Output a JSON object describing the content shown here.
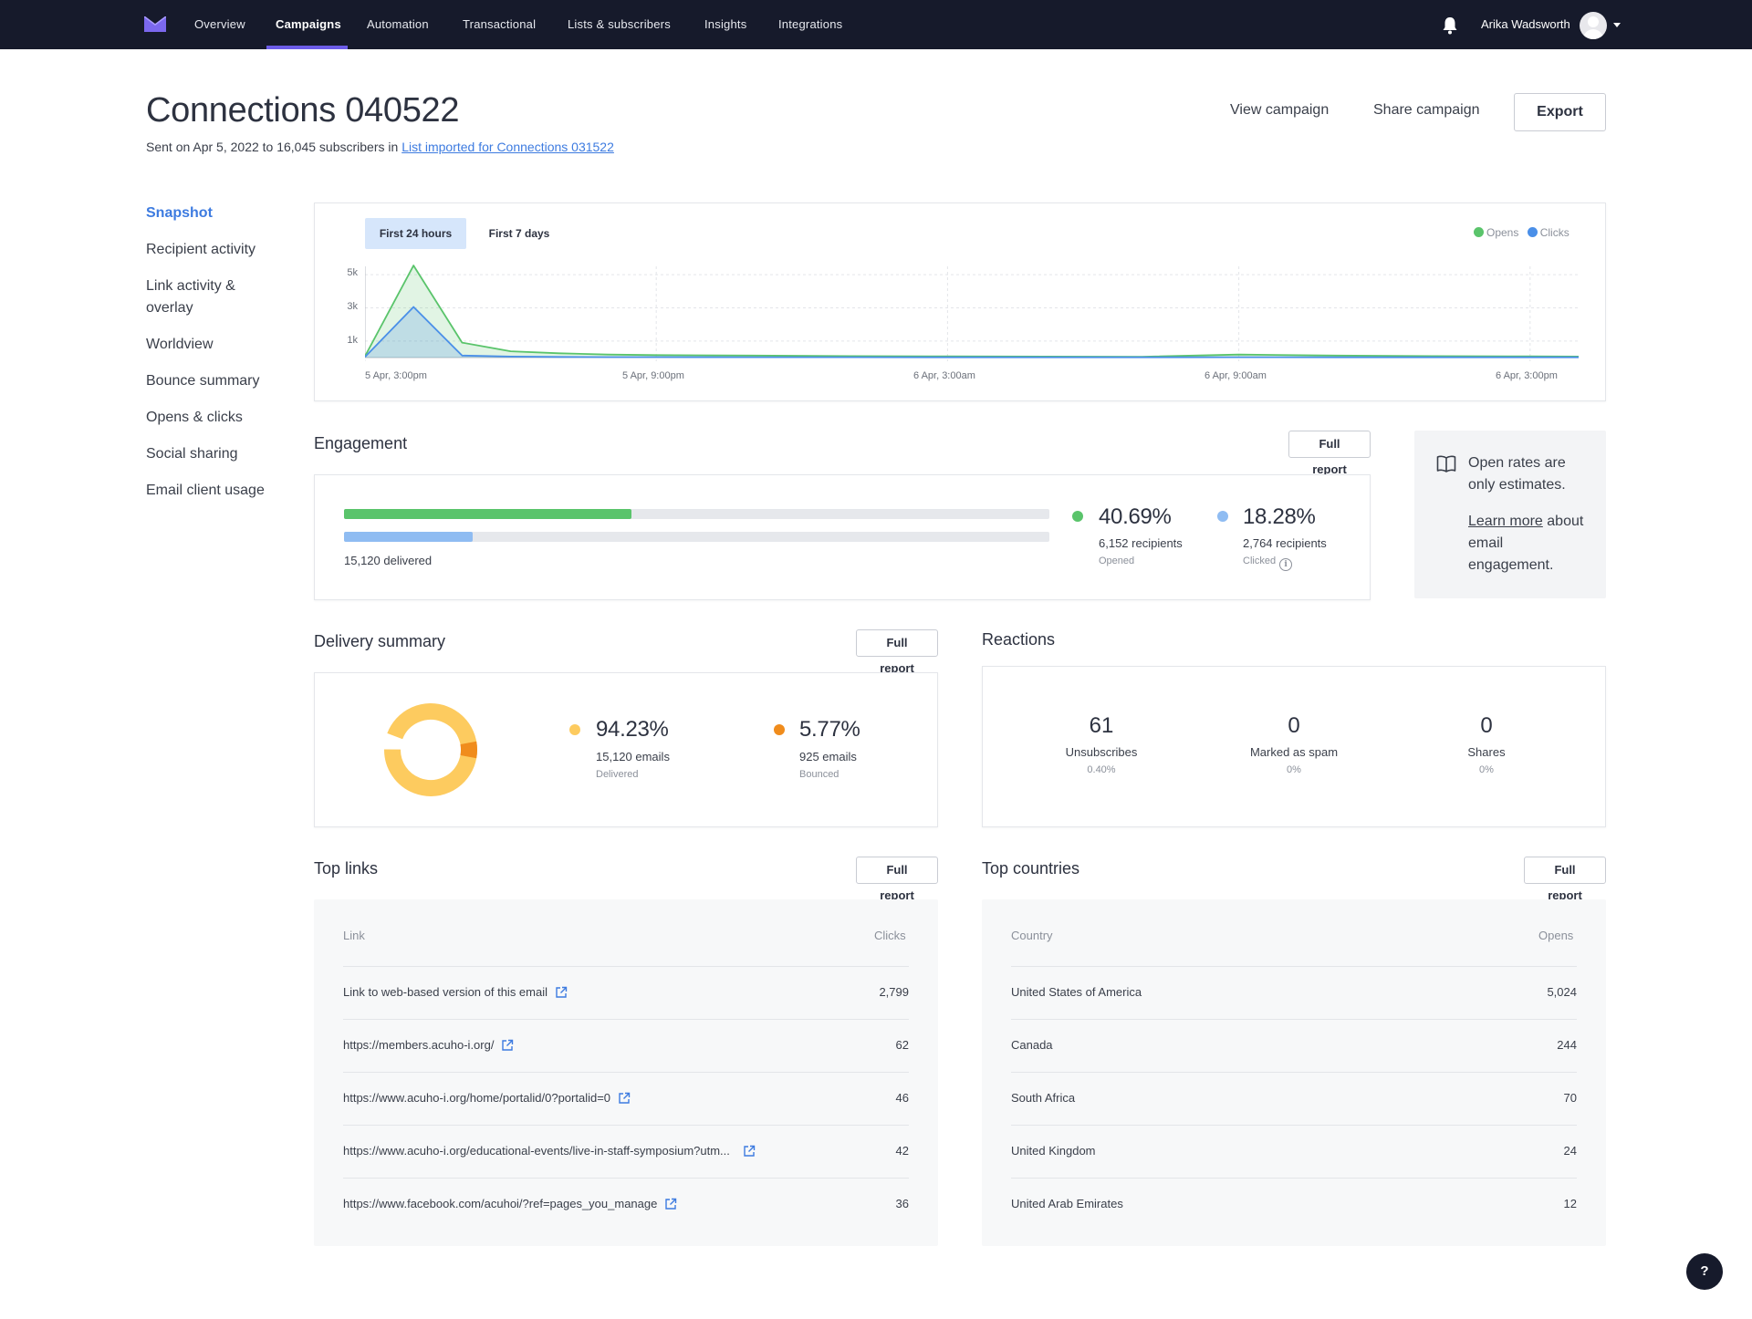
{
  "nav": {
    "items": [
      {
        "label": "Overview"
      },
      {
        "label": "Campaigns"
      },
      {
        "label": "Automation"
      },
      {
        "label": "Transactional"
      },
      {
        "label": "Lists & subscribers"
      },
      {
        "label": "Insights"
      },
      {
        "label": "Integrations"
      }
    ],
    "active_index": 1,
    "user_name": "Arika Wadsworth"
  },
  "header": {
    "title": "Connections 040522",
    "subtitle_prefix": "Sent on Apr 5, 2022 to 16,045 subscribers in ",
    "list_link": "List imported for Connections 031522",
    "view_campaign": "View campaign",
    "share_campaign": "Share campaign",
    "export": "Export"
  },
  "sidebar": {
    "items": [
      {
        "label": "Snapshot",
        "active": true
      },
      {
        "label": "Recipient activity"
      },
      {
        "label": "Link activity & overlay"
      },
      {
        "label": "Worldview"
      },
      {
        "label": "Bounce summary"
      },
      {
        "label": "Opens & clicks"
      },
      {
        "label": "Social sharing"
      },
      {
        "label": "Email client usage"
      }
    ]
  },
  "chart": {
    "tabs": [
      {
        "label": "First 24 hours",
        "active": true
      },
      {
        "label": "First 7 days"
      }
    ],
    "legend": [
      {
        "label": "Opens",
        "color": "#5ac46b"
      },
      {
        "label": "Clicks",
        "color": "#4a8fe8"
      }
    ]
  },
  "chart_data": {
    "type": "area",
    "x_tick_labels": [
      "5 Apr, 3:00pm",
      "5 Apr, 9:00pm",
      "6 Apr, 3:00am",
      "6 Apr, 9:00am",
      "6 Apr, 3:00pm"
    ],
    "y_tick_labels": [
      "5k",
      "3k",
      "1k"
    ],
    "ylim": [
      0,
      5500
    ],
    "x_hours": [
      0,
      1,
      2,
      3,
      4,
      5,
      6,
      8,
      10,
      12,
      14,
      16,
      18,
      20,
      22,
      24,
      25
    ],
    "series": [
      {
        "name": "Opens",
        "color": "#5ac46b",
        "values": [
          80,
          5550,
          900,
          380,
          260,
          180,
          150,
          120,
          90,
          70,
          60,
          50,
          180,
          120,
          90,
          70,
          60
        ]
      },
      {
        "name": "Clicks",
        "color": "#4a8fe8",
        "values": [
          40,
          3050,
          120,
          60,
          40,
          30,
          25,
          20,
          20,
          15,
          15,
          15,
          20,
          15,
          15,
          15,
          15
        ]
      }
    ],
    "grid": true,
    "legend_position": "top-right"
  },
  "engagement": {
    "title": "Engagement",
    "full_report": "Full report",
    "delivered": "15,120 delivered",
    "opened_fraction": 0.4069,
    "clicked_fraction": 0.1828,
    "opened": {
      "pct": "40.69%",
      "recipients": "6,152 recipients",
      "caption": "Opened",
      "color": "#5ac46b"
    },
    "clicked": {
      "pct": "18.28%",
      "recipients": "2,764 recipients",
      "caption": "Clicked",
      "color": "#8fbcf2"
    },
    "note": "Open rates are only estimates.",
    "note_link": "Learn more",
    "note_link_suffix": " about email engagement."
  },
  "delivery": {
    "title": "Delivery summary",
    "full_report": "Full report",
    "delivered_fraction": 0.9423,
    "delivered": {
      "pct": "94.23%",
      "emails": "15,120 emails",
      "caption": "Delivered",
      "color": "#fdcb5f"
    },
    "bounced": {
      "pct": "5.77%",
      "emails": "925 emails",
      "caption": "Bounced",
      "color": "#f08c1c"
    }
  },
  "reactions": {
    "title": "Reactions",
    "items": [
      {
        "num": "61",
        "label": "Unsubscribes",
        "pct": "0.40%"
      },
      {
        "num": "0",
        "label": "Marked as spam",
        "pct": "0%"
      },
      {
        "num": "0",
        "label": "Shares",
        "pct": "0%"
      }
    ]
  },
  "top_links": {
    "title": "Top links",
    "full_report": "Full report",
    "col_link": "Link",
    "col_clicks": "Clicks",
    "rows": [
      {
        "link": "Link to web-based version of this email",
        "clicks": "2,799"
      },
      {
        "link": "https://members.acuho-i.org/",
        "clicks": "62"
      },
      {
        "link": "https://www.acuho-i.org/home/portalid/0?portalid=0",
        "clicks": "46"
      },
      {
        "link": "https://www.acuho-i.org/educational-events/live-in-staff-symposium?utm...",
        "clicks": "42"
      },
      {
        "link": "https://www.facebook.com/acuhoi/?ref=pages_you_manage",
        "clicks": "36"
      }
    ]
  },
  "top_countries": {
    "title": "Top countries",
    "full_report": "Full report",
    "col_country": "Country",
    "col_opens": "Opens",
    "rows": [
      {
        "country": "United States of America",
        "opens": "5,024"
      },
      {
        "country": "Canada",
        "opens": "244"
      },
      {
        "country": "South Africa",
        "opens": "70"
      },
      {
        "country": "United Kingdom",
        "opens": "24"
      },
      {
        "country": "United Arab Emirates",
        "opens": "12"
      }
    ]
  },
  "help": {
    "label": "?"
  }
}
